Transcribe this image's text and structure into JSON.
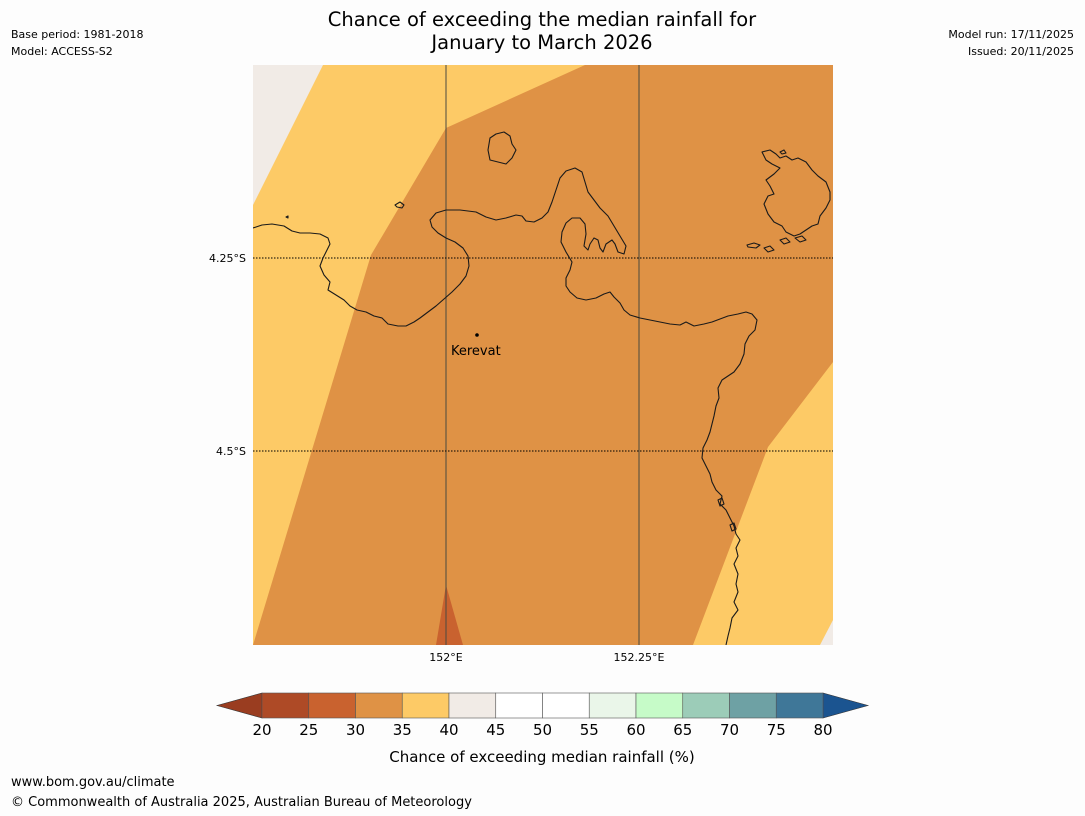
{
  "title": {
    "line1": "Chance of exceeding the median rainfall for",
    "line2": "January to March 2026"
  },
  "meta_left": {
    "base_period": "Base period: 1981-2018",
    "model": "Model: ACCESS-S2"
  },
  "meta_right": {
    "model_run": "Model run: 17/11/2025",
    "issued": "Issued: 20/11/2025"
  },
  "map": {
    "lat_labels": [
      "4.25°S",
      "4.5°S"
    ],
    "lon_labels": [
      "152°E",
      "152.25°E"
    ],
    "place": "Kerevat"
  },
  "colorbar": {
    "title": "Chance of exceeding median rainfall (%)",
    "ticks": [
      "20",
      "25",
      "30",
      "35",
      "40",
      "45",
      "50",
      "55",
      "60",
      "65",
      "70",
      "75",
      "80"
    ],
    "colors": [
      "#ae4a26",
      "#c9622f",
      "#df9245",
      "#fdca66",
      "#f1ebe6",
      "#ffffff",
      "#ffffff",
      "#eaf6e9",
      "#c6fbc8",
      "#9cccb8",
      "#6ea1a4",
      "#3f7798"
    ],
    "low_extend_color": "#9a3d20",
    "high_extend_color": "#1b5490"
  },
  "footer": {
    "url": "www.bom.gov.au/climate",
    "copyright": "© Commonwealth of Australia 2025, Australian Bureau of Meteorology"
  }
}
